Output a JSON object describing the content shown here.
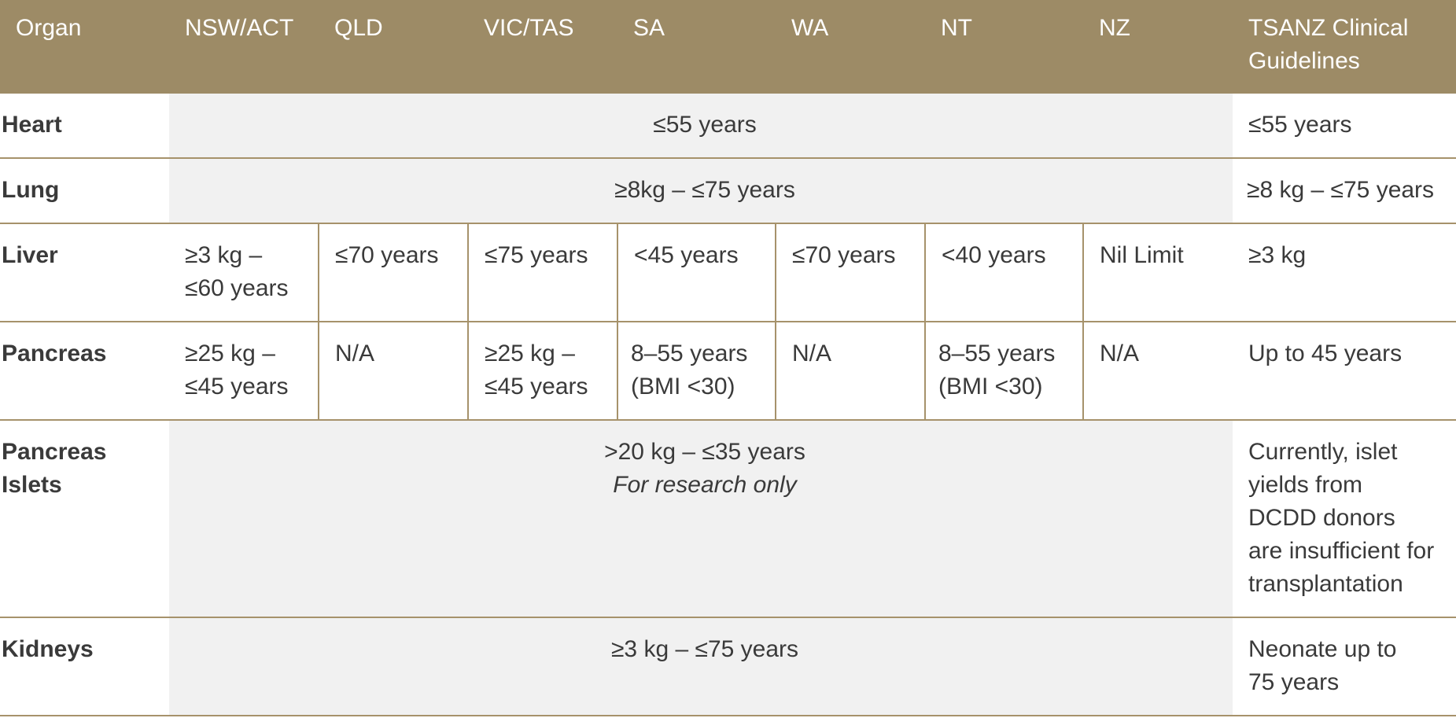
{
  "headers": [
    "Organ",
    "NSW/ACT",
    "QLD",
    "VIC/TAS",
    "SA",
    "WA",
    "NT",
    "NZ",
    "TSANZ Clinical Guidelines"
  ],
  "rows": {
    "heart": {
      "organ": "Heart",
      "all_regions": "≤55 years",
      "tsanz": "≤55 years"
    },
    "lung": {
      "organ": "Lung",
      "all_regions": "≥8kg – ≤75 years",
      "tsanz": "≥8 kg – ≤75 years"
    },
    "liver": {
      "organ": "Liver",
      "nsw_l1": "≥3 kg –",
      "nsw_l2": "≤60 years",
      "qld": "≤70 years",
      "vic": "≤75 years",
      "sa": "<45 years",
      "wa": "≤70 years",
      "nt": "<40 years",
      "nz": "Nil Limit",
      "tsanz": "≥3 kg"
    },
    "pancreas": {
      "organ": "Pancreas",
      "nsw_l1": "≥25 kg –",
      "nsw_l2": "≤45 years",
      "qld": "N/A",
      "vic_l1": "≥25 kg –",
      "vic_l2": "≤45 years",
      "sa_l1": "8–55 years",
      "sa_l2": "(BMI <30)",
      "wa": "N/A",
      "nt_l1": "8–55 years",
      "nt_l2": "(BMI <30)",
      "nz": "N/A",
      "tsanz": "Up to 45 years"
    },
    "islets": {
      "organ_l1": "Pancreas",
      "organ_l2": "Islets",
      "all_regions": ">20 kg – ≤35 years",
      "note": "For research only",
      "tsanz_l1": "Currently, islet",
      "tsanz_l2": "yields from",
      "tsanz_l3": "DCDD donors",
      "tsanz_l4": "are insufficient for",
      "tsanz_l5": "transplantation"
    },
    "kidneys": {
      "organ": "Kidneys",
      "all_regions": "≥3 kg – ≤75 years",
      "tsanz_l1": "Neonate up to",
      "tsanz_l2": "75 years"
    }
  }
}
